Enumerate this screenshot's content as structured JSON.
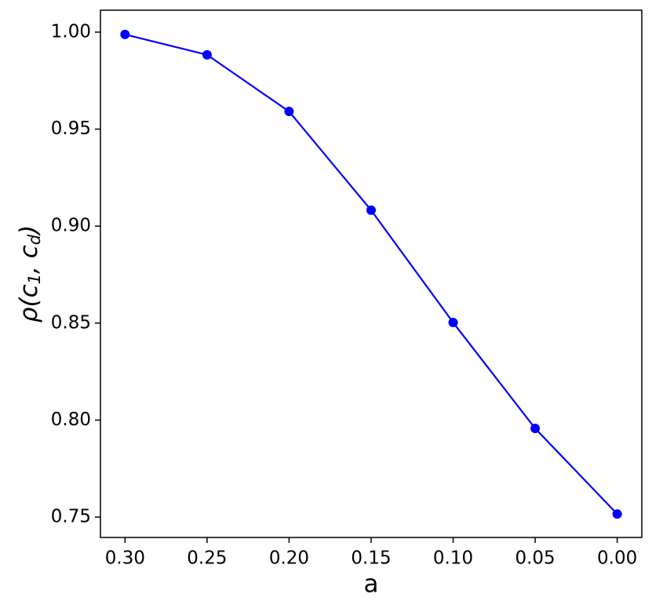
{
  "chart_data": {
    "type": "line",
    "xlabel": "a",
    "ylabel": "ρ(c_1, c_d)",
    "x": [
      0.3,
      0.25,
      0.2,
      0.15,
      0.1,
      0.05,
      0.0
    ],
    "series": [
      {
        "color": "#0000ff",
        "values": [
          0.9988,
          0.9883,
          0.9591,
          0.9082,
          0.8503,
          0.7957,
          0.7516
        ]
      }
    ],
    "xlim": [
      0.315,
      -0.015
    ],
    "ylim": [
      0.7395,
      1.0113
    ],
    "xticks": [
      {
        "value": 0.3,
        "label": "0.30"
      },
      {
        "value": 0.25,
        "label": "0.25"
      },
      {
        "value": 0.2,
        "label": "0.20"
      },
      {
        "value": 0.15,
        "label": "0.15"
      },
      {
        "value": 0.1,
        "label": "0.10"
      },
      {
        "value": 0.05,
        "label": "0.05"
      },
      {
        "value": 0,
        "label": "0.00"
      }
    ],
    "yticks": [
      {
        "value": 0.75,
        "label": "0.75"
      },
      {
        "value": 0.8,
        "label": "0.80"
      },
      {
        "value": 0.85,
        "label": "0.85"
      },
      {
        "value": 0.9,
        "label": "0.90"
      },
      {
        "value": 0.95,
        "label": "0.95"
      },
      {
        "value": 1,
        "label": "1.00"
      }
    ],
    "grid": false
  }
}
